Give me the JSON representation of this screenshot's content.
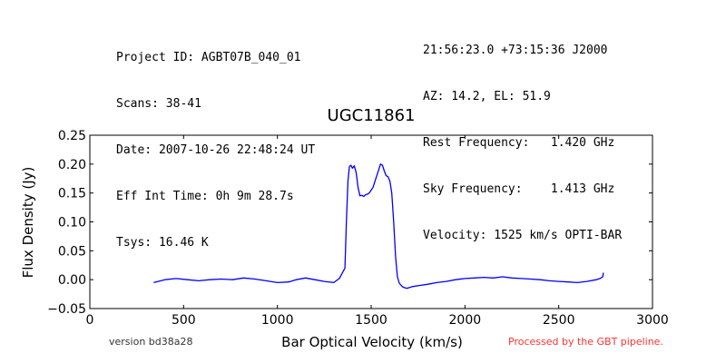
{
  "header": {
    "left": [
      "Project ID: AGBT07B_040_01",
      "Scans: 38-41",
      "Date: 2007-10-26 22:48:24 UT",
      "Eff Int Time: 0h 9m 28.7s",
      "Tsys: 16.46 K"
    ],
    "right": [
      "21:56:23.0 +73:15:36 J2000",
      "AZ: 14.2, EL: 51.9",
      "Rest Frequency:   1.420 GHz",
      "Sky Frequency:    1.413 GHz",
      "Velocity: 1525 km/s OPTI-BAR"
    ]
  },
  "footer": {
    "version": "version bd38a28",
    "pipeline": "Processed by the GBT pipeline."
  },
  "chart_data": {
    "type": "line",
    "title": "UGC11861",
    "xlabel": "Bar Optical Velocity (km/s)",
    "ylabel": "Flux Density (Jy)",
    "xlim": [
      0,
      3000
    ],
    "ylim": [
      -0.05,
      0.25
    ],
    "xticks": [
      "0",
      "500",
      "1000",
      "1500",
      "2000",
      "2500",
      "3000"
    ],
    "yticks": [
      "−0.05",
      "0.00",
      "0.05",
      "0.10",
      "0.15",
      "0.20",
      "0.25"
    ],
    "grid": false,
    "line_color": "#0000ff",
    "series": [
      {
        "x": [
          340,
          400,
          460,
          520,
          580,
          640,
          700,
          760,
          820,
          880,
          940,
          1000,
          1060,
          1100,
          1150,
          1200,
          1250,
          1300,
          1330,
          1360,
          1368,
          1376,
          1384,
          1392,
          1400,
          1410,
          1420,
          1430,
          1440,
          1450,
          1460,
          1470,
          1480,
          1490,
          1500,
          1510,
          1520,
          1530,
          1540,
          1550,
          1560,
          1570,
          1580,
          1590,
          1600,
          1610,
          1620,
          1630,
          1640,
          1650,
          1660,
          1670,
          1690,
          1720,
          1760,
          1800,
          1850,
          1900,
          1950,
          2000,
          2050,
          2100,
          2150,
          2200,
          2250,
          2300,
          2350,
          2400,
          2450,
          2500,
          2550,
          2600,
          2650,
          2700,
          2720,
          2735,
          2738
        ],
        "values": [
          -0.005,
          0.0,
          0.002,
          0.0,
          -0.002,
          0.0,
          0.001,
          0.0,
          0.003,
          0.001,
          -0.002,
          -0.005,
          -0.004,
          0.0,
          0.003,
          0.0,
          -0.003,
          -0.005,
          0.002,
          0.02,
          0.1,
          0.17,
          0.196,
          0.198,
          0.193,
          0.197,
          0.185,
          0.16,
          0.145,
          0.146,
          0.144,
          0.147,
          0.148,
          0.15,
          0.155,
          0.16,
          0.17,
          0.18,
          0.19,
          0.2,
          0.198,
          0.188,
          0.18,
          0.178,
          0.17,
          0.15,
          0.1,
          0.04,
          0.005,
          -0.006,
          -0.01,
          -0.013,
          -0.015,
          -0.012,
          -0.01,
          -0.008,
          -0.005,
          -0.003,
          0.0,
          0.002,
          0.003,
          0.004,
          0.003,
          0.005,
          0.003,
          0.002,
          0.001,
          0.0,
          -0.002,
          -0.003,
          -0.004,
          -0.005,
          -0.003,
          0.0,
          0.002,
          0.005,
          0.012
        ]
      }
    ]
  }
}
